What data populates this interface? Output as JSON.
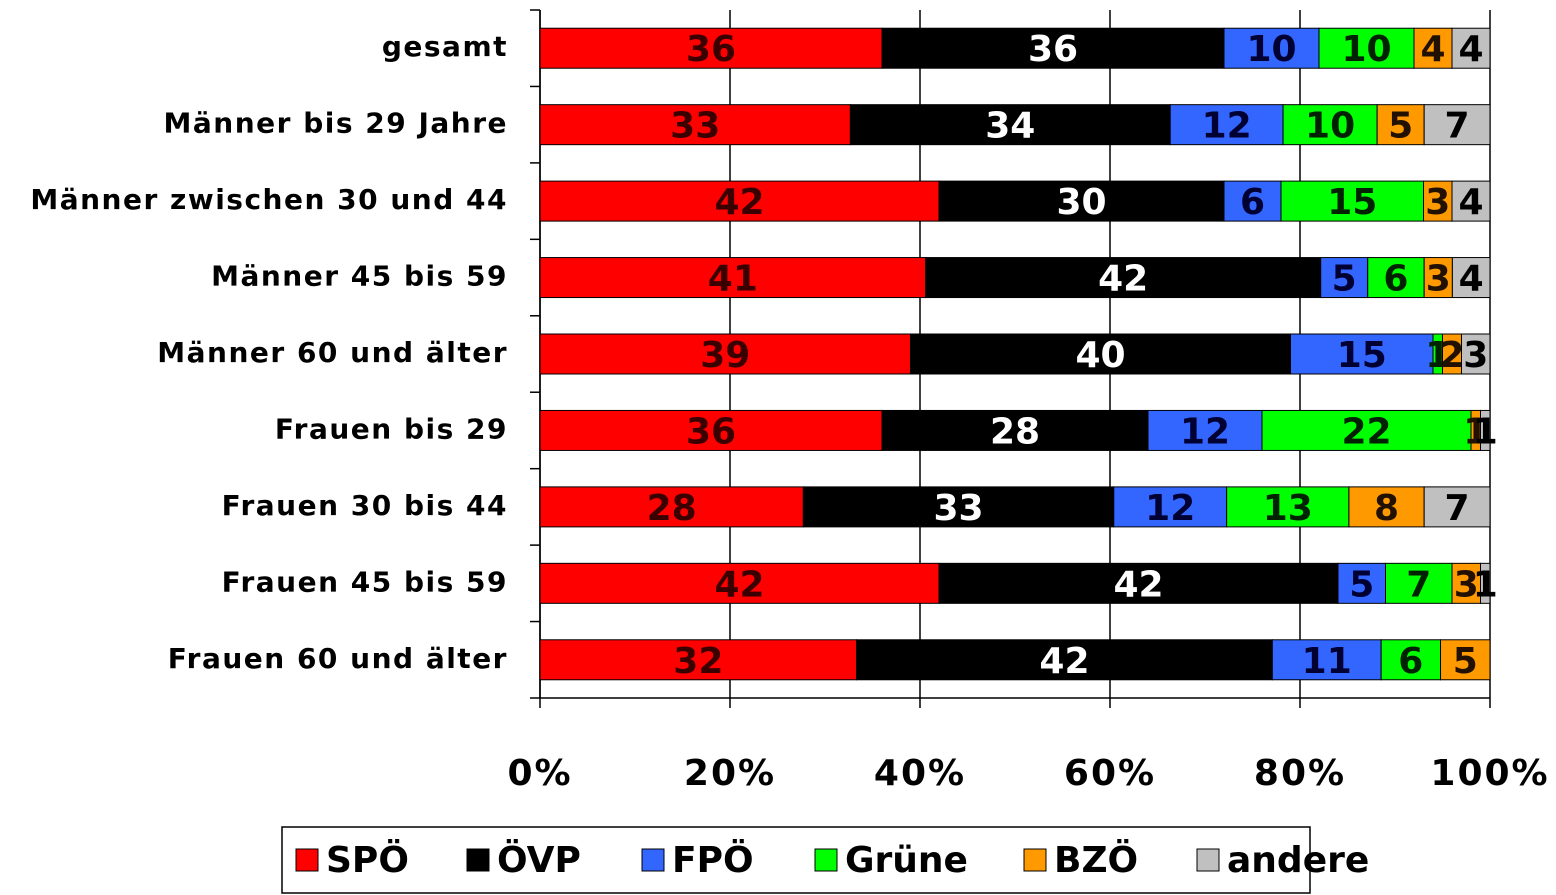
{
  "chart_data": {
    "type": "bar",
    "orientation": "horizontal",
    "stacked": true,
    "percent_stacked": true,
    "categories": [
      "gesamt",
      "Männer bis 29 Jahre",
      "Männer zwischen 30 und 44",
      "Männer 45 bis 59",
      "Männer 60 und älter",
      "Frauen bis 29",
      "Frauen 30 bis 44",
      "Frauen 45 bis 59",
      "Frauen 60 und älter"
    ],
    "series": [
      {
        "name": "SPÖ",
        "color": "#ff0000",
        "label_color": "#3a0000",
        "values": [
          36,
          33,
          42,
          41,
          39,
          36,
          28,
          42,
          32
        ]
      },
      {
        "name": "ÖVP",
        "color": "#000000",
        "label_color": "#ffffff",
        "values": [
          36,
          34,
          30,
          42,
          40,
          28,
          33,
          42,
          42
        ]
      },
      {
        "name": "FPÖ",
        "color": "#3366ff",
        "label_color": "#000033",
        "values": [
          10,
          12,
          6,
          5,
          15,
          12,
          12,
          5,
          11
        ]
      },
      {
        "name": "Grüne",
        "color": "#00ff00",
        "label_color": "#002200",
        "values": [
          10,
          10,
          15,
          6,
          1,
          22,
          13,
          7,
          6
        ]
      },
      {
        "name": "BZÖ",
        "color": "#ff9900",
        "label_color": "#221100",
        "values": [
          4,
          5,
          3,
          3,
          2,
          1,
          8,
          3,
          5
        ]
      },
      {
        "name": "andere",
        "color": "#c0c0c0",
        "label_color": "#000000",
        "values": [
          4,
          7,
          4,
          4,
          3,
          1,
          7,
          1,
          null
        ]
      }
    ],
    "xlim": [
      0,
      100
    ],
    "xticks": [
      {
        "value": 0,
        "label": "0%"
      },
      {
        "value": 20,
        "label": "20%"
      },
      {
        "value": 40,
        "label": "40%"
      },
      {
        "value": 60,
        "label": "60%"
      },
      {
        "value": 80,
        "label": "80%"
      },
      {
        "value": 100,
        "label": "100%"
      }
    ],
    "grid": true,
    "legend": "bottom"
  }
}
